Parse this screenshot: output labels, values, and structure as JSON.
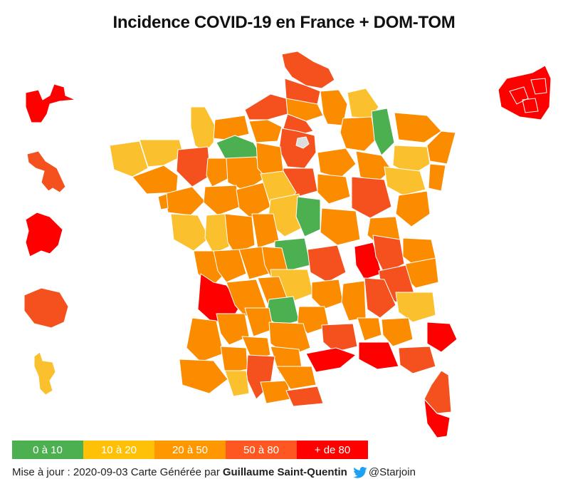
{
  "title": "Incidence COVID-19 en France + DOM-TOM",
  "colors": {
    "c1": "#4caf50",
    "c2": "#fbc02d",
    "c3": "#fb8c00",
    "c4": "#f4511e",
    "c5": "#ff0000",
    "nodata": "#dddddd"
  },
  "legend": [
    {
      "label": "0 à 10",
      "color": "#4caf50"
    },
    {
      "label": "10 à 20",
      "color": "#ffc107"
    },
    {
      "label": "20 à 50",
      "color": "#ff9800"
    },
    {
      "label": "50 à 80",
      "color": "#ff5722"
    },
    {
      "label": "+ de 80",
      "color": "#ff0000"
    }
  ],
  "footer": {
    "update_text": "Mise à jour : 2020-09-03 Carte Générée par",
    "author": "Guillaume Saint-Quentin",
    "twitter_icon": "twitter-bird-icon",
    "handle": "@Starjoin"
  }
}
